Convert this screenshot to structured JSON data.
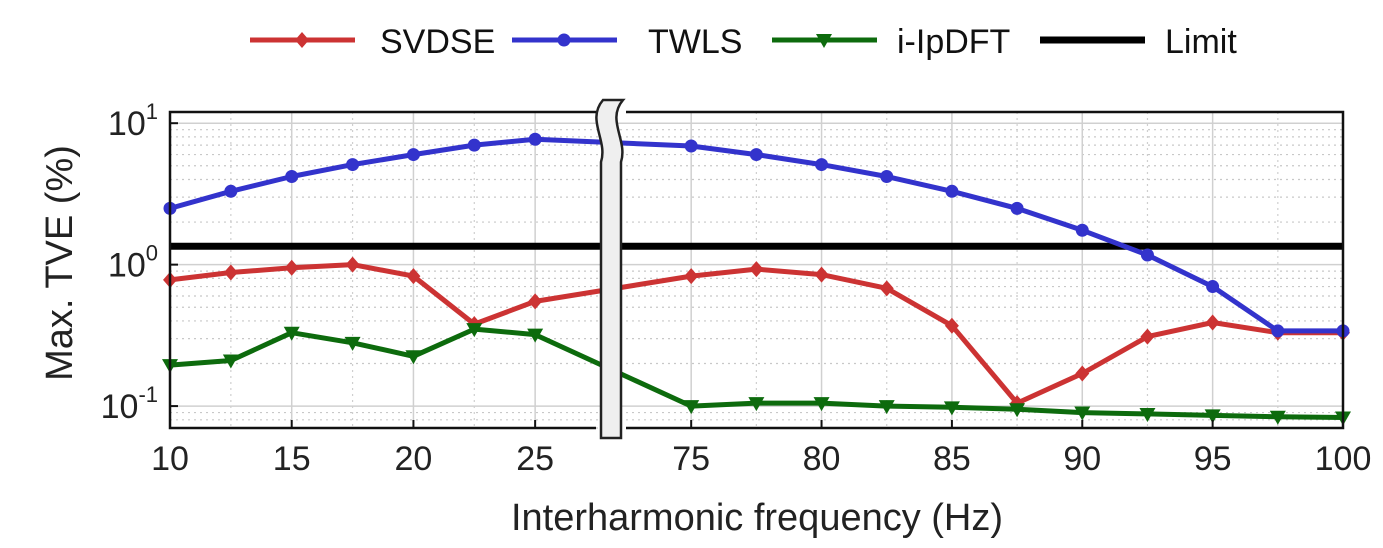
{
  "chart_data": {
    "type": "line",
    "xlabel": "Interharmonic frequency (Hz)",
    "ylabel": "Max. TVE (%)",
    "y_scale": "log",
    "ylim": [
      0.07,
      12
    ],
    "y_ticks": [
      {
        "value": 0.1,
        "base": "10",
        "exp": "-1"
      },
      {
        "value": 1,
        "base": "10",
        "exp": "0"
      },
      {
        "value": 10,
        "base": "10",
        "exp": "1"
      }
    ],
    "axis_break": {
      "left_range": [
        10,
        27.5
      ],
      "right_range": [
        72.5,
        100
      ]
    },
    "x_ticks_left": [
      "10",
      "15",
      "20",
      "25"
    ],
    "x_ticks_right": [
      "75",
      "80",
      "85",
      "90",
      "95",
      "100"
    ],
    "x": [
      10,
      12.5,
      15,
      17.5,
      20,
      22.5,
      25,
      75,
      77.5,
      80,
      82.5,
      85,
      87.5,
      90,
      92.5,
      95,
      97.5,
      100
    ],
    "series": [
      {
        "name": "SVDSE",
        "color": "#cc3333",
        "marker": "diamond",
        "values": [
          0.78,
          0.88,
          0.95,
          1.0,
          0.83,
          0.38,
          0.55,
          0.83,
          0.93,
          0.85,
          0.68,
          0.37,
          0.105,
          0.17,
          0.31,
          0.39,
          0.33,
          0.33
        ]
      },
      {
        "name": "TWLS",
        "color": "#3333cc",
        "marker": "circle",
        "values": [
          2.5,
          3.3,
          4.2,
          5.1,
          6.0,
          7.0,
          7.7,
          6.9,
          6.0,
          5.1,
          4.2,
          3.3,
          2.5,
          1.75,
          1.17,
          0.7,
          0.34,
          0.34
        ]
      },
      {
        "name": "i-IpDFT",
        "color": "#0d6b0d",
        "marker": "triangle-down",
        "values": [
          0.195,
          0.21,
          0.33,
          0.28,
          0.225,
          0.35,
          0.32,
          0.1,
          0.105,
          0.105,
          0.1,
          0.098,
          0.095,
          0.09,
          0.088,
          0.086,
          0.084,
          0.083
        ]
      }
    ],
    "reference_lines": [
      {
        "name": "Limit",
        "value": 1.35,
        "color": "#000000"
      }
    ],
    "grid": true,
    "legend": {
      "position": "top",
      "entries": [
        "SVDSE",
        "TWLS",
        "i-IpDFT",
        "Limit"
      ]
    }
  }
}
